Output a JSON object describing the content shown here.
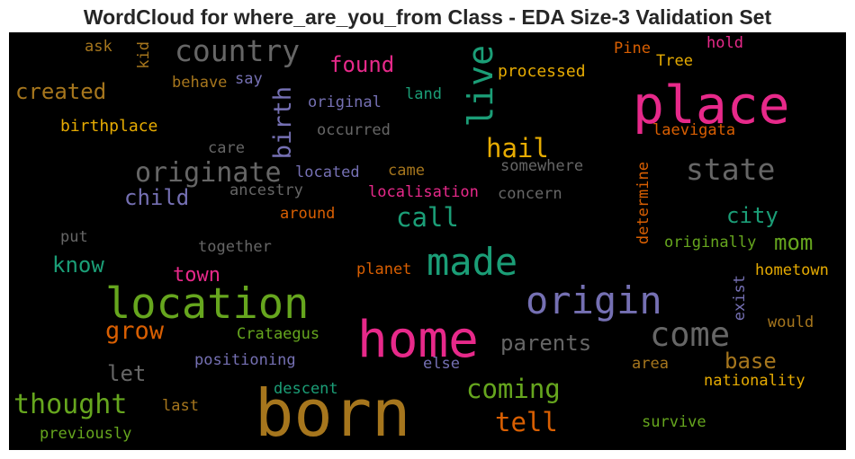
{
  "chart_data": {
    "type": "wordcloud",
    "title": "WordCloud for where_are_you_from Class - EDA Size-3 Validation Set",
    "background": "#000000",
    "palette": [
      "#1b9e77",
      "#d95f02",
      "#7570b3",
      "#e7298a",
      "#66a61e",
      "#e6ab02",
      "#a6761d",
      "#666666"
    ],
    "words": [
      {
        "text": "born",
        "color": "#a6761d",
        "vertical": false
      },
      {
        "text": "home",
        "color": "#e7298a",
        "vertical": false
      },
      {
        "text": "place",
        "color": "#e7298a",
        "vertical": false
      },
      {
        "text": "location",
        "color": "#66a61e",
        "vertical": false
      },
      {
        "text": "origin",
        "color": "#7570b3",
        "vertical": false
      },
      {
        "text": "made",
        "color": "#1b9e77",
        "vertical": false
      },
      {
        "text": "live",
        "color": "#1b9e77",
        "vertical": true
      },
      {
        "text": "come",
        "color": "#666666",
        "vertical": false
      },
      {
        "text": "country",
        "color": "#666666",
        "vertical": false
      },
      {
        "text": "state",
        "color": "#666666",
        "vertical": false
      },
      {
        "text": "originate",
        "color": "#666666",
        "vertical": false
      },
      {
        "text": "thought",
        "color": "#66a61e",
        "vertical": false
      },
      {
        "text": "coming",
        "color": "#66a61e",
        "vertical": false
      },
      {
        "text": "call",
        "color": "#1b9e77",
        "vertical": false
      },
      {
        "text": "hail",
        "color": "#e6ab02",
        "vertical": false
      },
      {
        "text": "tell",
        "color": "#d95f02",
        "vertical": false
      },
      {
        "text": "grow",
        "color": "#d95f02",
        "vertical": false
      },
      {
        "text": "birth",
        "color": "#7570b3",
        "vertical": true
      },
      {
        "text": "created",
        "color": "#a6761d",
        "vertical": false
      },
      {
        "text": "found",
        "color": "#e7298a",
        "vertical": false
      },
      {
        "text": "parents",
        "color": "#666666",
        "vertical": false
      },
      {
        "text": "child",
        "color": "#7570b3",
        "vertical": false
      },
      {
        "text": "know",
        "color": "#1b9e77",
        "vertical": false
      },
      {
        "text": "city",
        "color": "#1b9e77",
        "vertical": false
      },
      {
        "text": "mom",
        "color": "#66a61e",
        "vertical": false
      },
      {
        "text": "base",
        "color": "#a6761d",
        "vertical": false
      },
      {
        "text": "let",
        "color": "#666666",
        "vertical": false
      },
      {
        "text": "town",
        "color": "#e7298a",
        "vertical": false
      },
      {
        "text": "birthplace",
        "color": "#e6ab02",
        "vertical": false
      },
      {
        "text": "processed",
        "color": "#e6ab02",
        "vertical": false
      },
      {
        "text": "laevigata",
        "color": "#d95f02",
        "vertical": false
      },
      {
        "text": "somewhere",
        "color": "#666666",
        "vertical": false
      },
      {
        "text": "hometown",
        "color": "#e6ab02",
        "vertical": false
      },
      {
        "text": "nationality",
        "color": "#e6ab02",
        "vertical": false
      },
      {
        "text": "Crataegus",
        "color": "#66a61e",
        "vertical": false
      },
      {
        "text": "positioning",
        "color": "#7570b3",
        "vertical": false
      },
      {
        "text": "localisation",
        "color": "#e7298a",
        "vertical": false
      },
      {
        "text": "originally",
        "color": "#66a61e",
        "vertical": false
      },
      {
        "text": "determine",
        "color": "#d95f02",
        "vertical": true
      },
      {
        "text": "exist",
        "color": "#7570b3",
        "vertical": true
      },
      {
        "text": "original",
        "color": "#7570b3",
        "vertical": false
      },
      {
        "text": "occurred",
        "color": "#666666",
        "vertical": false
      },
      {
        "text": "located",
        "color": "#7570b3",
        "vertical": false
      },
      {
        "text": "came",
        "color": "#a6761d",
        "vertical": false
      },
      {
        "text": "concern",
        "color": "#666666",
        "vertical": false
      },
      {
        "text": "ancestry",
        "color": "#666666",
        "vertical": false
      },
      {
        "text": "around",
        "color": "#d95f02",
        "vertical": false
      },
      {
        "text": "planet",
        "color": "#d95f02",
        "vertical": false
      },
      {
        "text": "together",
        "color": "#666666",
        "vertical": false
      },
      {
        "text": "descent",
        "color": "#1b9e77",
        "vertical": false
      },
      {
        "text": "previously",
        "color": "#66a61e",
        "vertical": false
      },
      {
        "text": "survive",
        "color": "#66a61e",
        "vertical": false
      },
      {
        "text": "would",
        "color": "#a6761d",
        "vertical": false
      },
      {
        "text": "area",
        "color": "#a6761d",
        "vertical": false
      },
      {
        "text": "else",
        "color": "#7570b3",
        "vertical": false
      },
      {
        "text": "last",
        "color": "#a6761d",
        "vertical": false
      },
      {
        "text": "behave",
        "color": "#a6761d",
        "vertical": false
      },
      {
        "text": "say",
        "color": "#7570b3",
        "vertical": false
      },
      {
        "text": "land",
        "color": "#1b9e77",
        "vertical": false
      },
      {
        "text": "care",
        "color": "#666666",
        "vertical": false
      },
      {
        "text": "put",
        "color": "#666666",
        "vertical": false
      },
      {
        "text": "ask",
        "color": "#a6761d",
        "vertical": false
      },
      {
        "text": "kid",
        "color": "#a6761d",
        "vertical": true
      },
      {
        "text": "Pine",
        "color": "#d95f02",
        "vertical": false
      },
      {
        "text": "Tree",
        "color": "#e6ab02",
        "vertical": false
      },
      {
        "text": "hold",
        "color": "#e7298a",
        "vertical": false
      }
    ]
  }
}
